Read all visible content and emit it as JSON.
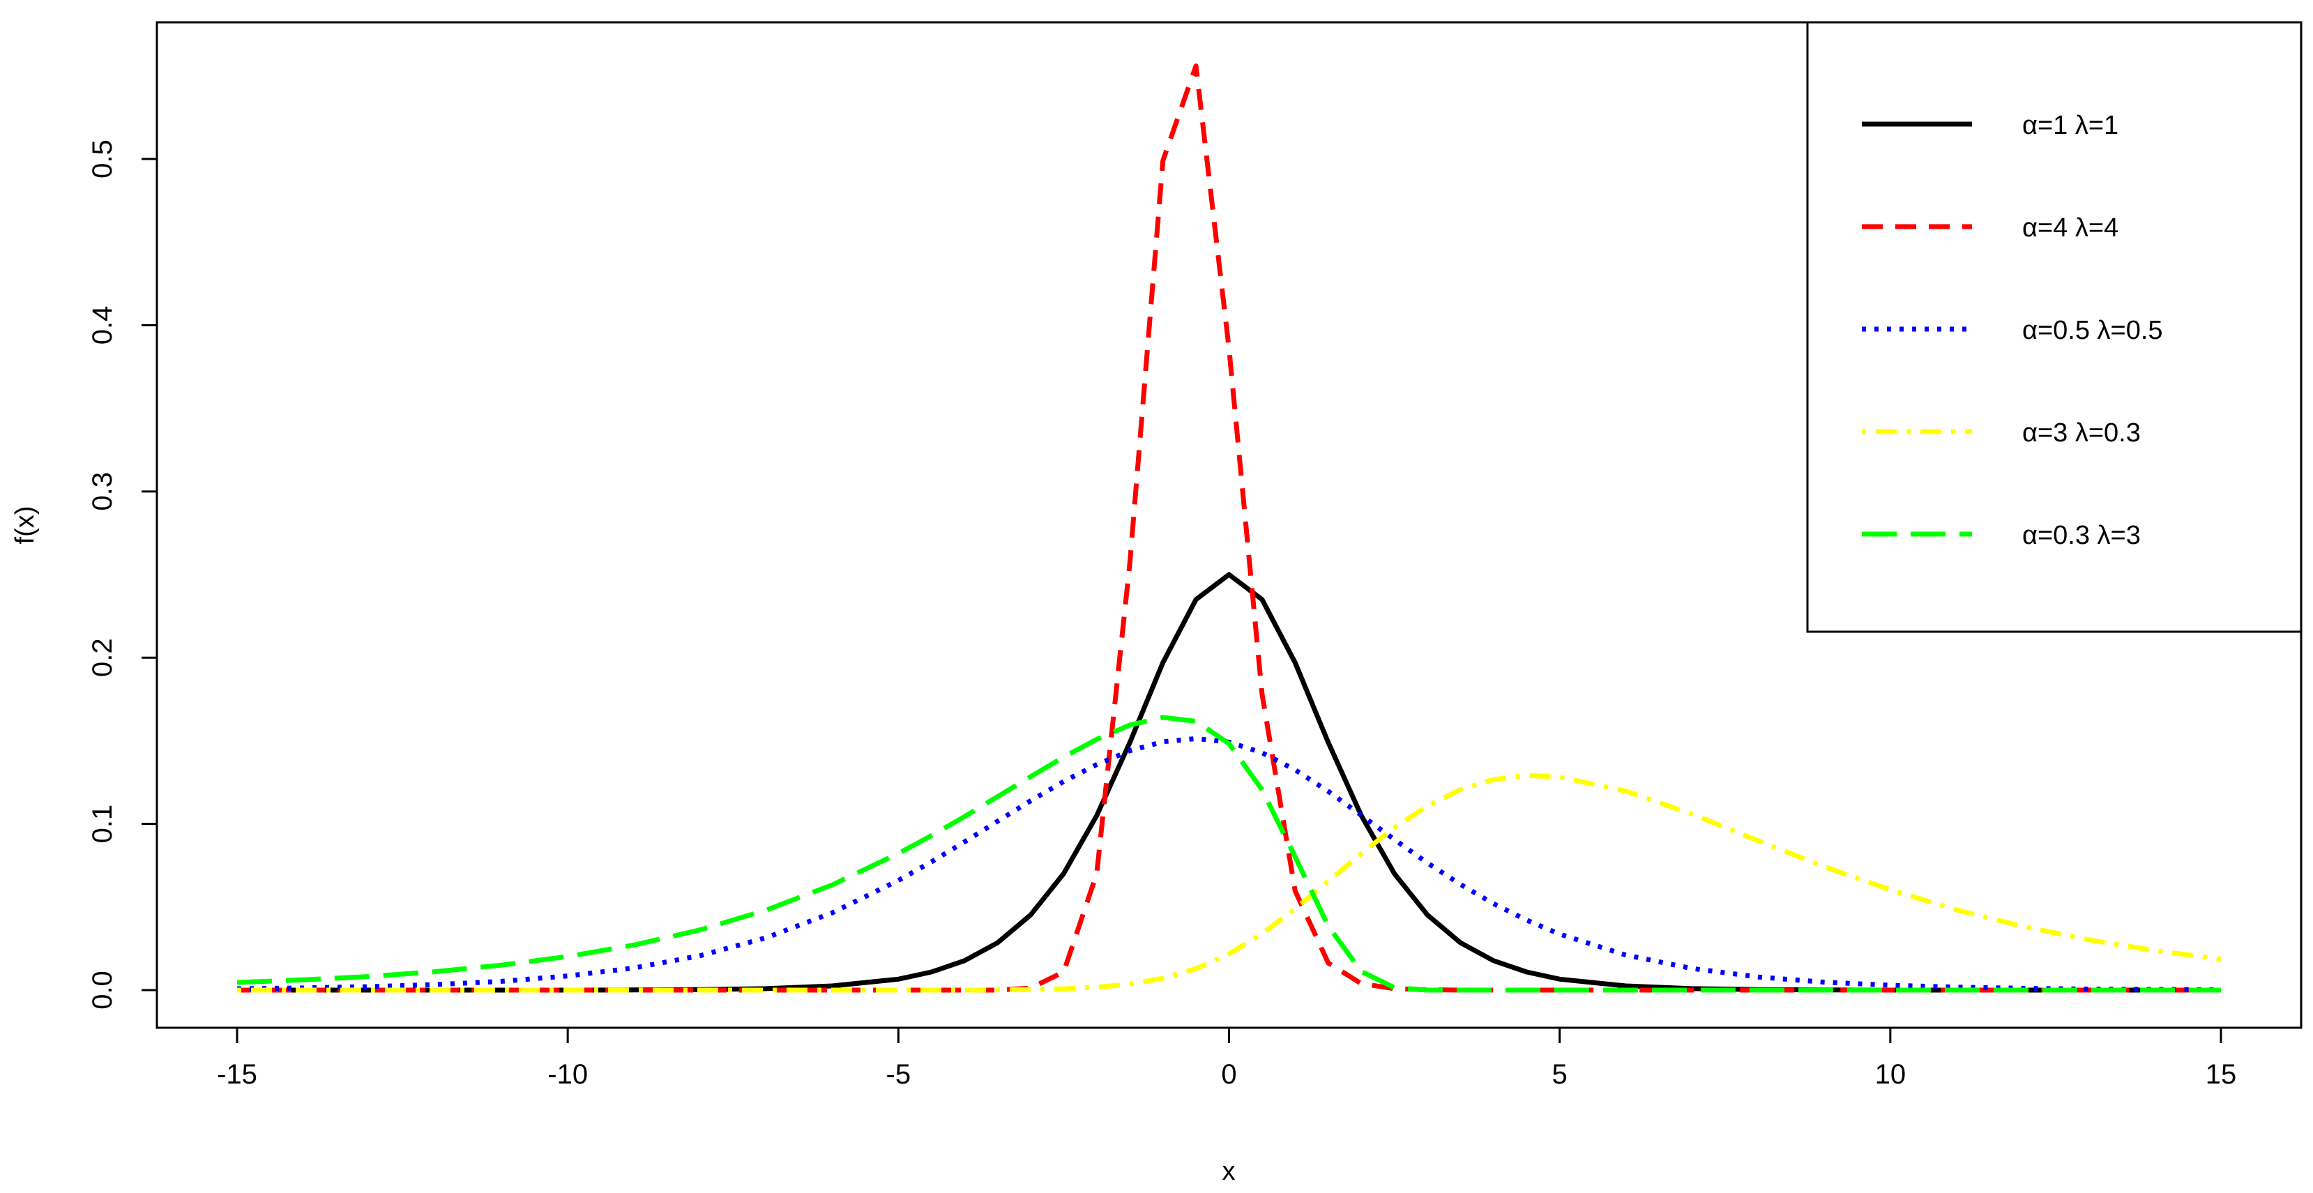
{
  "chart_data": {
    "type": "line",
    "title": "",
    "xlabel": "x",
    "ylabel": "f(x)",
    "xlim": [
      -15,
      15
    ],
    "ylim": [
      0,
      0.56
    ],
    "x_ticks": [
      -15,
      -10,
      -5,
      0,
      5,
      10,
      15
    ],
    "x_tick_labels": [
      "-15",
      "-10",
      "-5",
      "0",
      "5",
      "10",
      "15"
    ],
    "y_ticks": [
      0,
      0.1,
      0.2,
      0.3,
      0.4,
      0.5
    ],
    "y_tick_labels": [
      "0.0",
      "0.1",
      "0.2",
      "0.3",
      "0.4",
      "0.5"
    ],
    "grid": false,
    "legend_position": "top-right",
    "x": [
      -15,
      -14,
      -13,
      -12,
      -11,
      -10,
      -9,
      -8,
      -7,
      -6,
      -5,
      -4.5,
      -4,
      -3.5,
      -3,
      -2.5,
      -2,
      -1.5,
      -1,
      -0.5,
      0,
      0.5,
      1,
      1.5,
      2,
      2.5,
      3,
      3.5,
      4,
      4.5,
      5,
      6,
      7,
      8,
      9,
      10,
      11,
      12,
      13,
      14,
      15
    ],
    "series": [
      {
        "name": "α=1 λ=1",
        "color": "#000000",
        "line_style": "solid",
        "values": [
          0.0,
          0.0,
          0.0,
          0.0,
          0.0,
          0.0,
          0.0001,
          0.0003,
          0.0009,
          0.0025,
          0.0066,
          0.0109,
          0.0177,
          0.0285,
          0.0452,
          0.0701,
          0.105,
          0.149,
          0.197,
          0.235,
          0.25,
          0.235,
          0.197,
          0.149,
          0.105,
          0.0701,
          0.0452,
          0.0285,
          0.0177,
          0.0109,
          0.0066,
          0.0025,
          0.0009,
          0.0003,
          0.0001,
          0.0,
          0.0,
          0.0,
          0.0,
          0.0,
          0.0
        ]
      },
      {
        "name": "α=4 λ=4",
        "color": "#ff0000",
        "line_style": "dashed",
        "values": [
          0.0,
          0.0,
          0.0,
          0.0,
          0.0,
          0.0,
          0.0,
          0.0,
          0.0,
          0.0,
          0.0,
          0.0,
          0.0,
          0.0,
          0.0012,
          0.0109,
          0.0701,
          0.257,
          0.499,
          0.556,
          0.386,
          0.178,
          0.0597,
          0.0163,
          0.0039,
          0.0009,
          0.0002,
          0.0,
          0.0,
          0.0,
          0.0,
          0.0,
          0.0,
          0.0,
          0.0,
          0.0,
          0.0,
          0.0,
          0.0,
          0.0,
          0.0
        ]
      },
      {
        "name": "α=0.5 λ=0.5",
        "color": "#0000ff",
        "line_style": "dotted",
        "values": [
          0.0008,
          0.0013,
          0.0021,
          0.0033,
          0.0053,
          0.0085,
          0.0133,
          0.0207,
          0.0315,
          0.0465,
          0.066,
          0.0772,
          0.0892,
          0.1016,
          0.1139,
          0.1255,
          0.1357,
          0.144,
          0.1494,
          0.1513,
          0.1492,
          0.1428,
          0.1325,
          0.1196,
          0.1052,
          0.0906,
          0.0765,
          0.0636,
          0.052,
          0.0421,
          0.0337,
          0.0211,
          0.013,
          0.0079,
          0.0048,
          0.0029,
          0.0018,
          0.0011,
          0.0006,
          0.0004,
          0.0002
        ]
      },
      {
        "name": "α=3 λ=0.3",
        "color": "#ffff00",
        "line_style": "dotdash",
        "values": [
          0.0,
          0.0,
          0.0,
          0.0,
          0.0,
          0.0,
          0.0,
          0.0,
          0.0,
          0.0,
          0.0,
          0.0,
          0.0,
          0.0001,
          0.0003,
          0.0008,
          0.0017,
          0.0036,
          0.0071,
          0.0129,
          0.0218,
          0.0339,
          0.0489,
          0.0654,
          0.0822,
          0.0977,
          0.1108,
          0.1206,
          0.1267,
          0.1291,
          0.1282,
          0.1197,
          0.1059,
          0.0899,
          0.0743,
          0.0604,
          0.0483,
          0.0384,
          0.0303,
          0.0238,
          0.0186
        ]
      },
      {
        "name": "α=0.3 λ=3",
        "color": "#00ff00",
        "line_style": "longdash",
        "values": [
          0.0046,
          0.0062,
          0.0082,
          0.0111,
          0.015,
          0.0202,
          0.0271,
          0.0362,
          0.0481,
          0.0633,
          0.0822,
          0.0929,
          0.1044,
          0.1164,
          0.1284,
          0.1402,
          0.1509,
          0.1595,
          0.1641,
          0.1617,
          0.1483,
          0.1205,
          0.0802,
          0.0385,
          0.0112,
          0.0015,
          0.0,
          0.0,
          0.0,
          0.0,
          0.0,
          0.0,
          0.0,
          0.0,
          0.0,
          0.0,
          0.0,
          0.0,
          0.0,
          0.0,
          0.0
        ]
      }
    ]
  }
}
